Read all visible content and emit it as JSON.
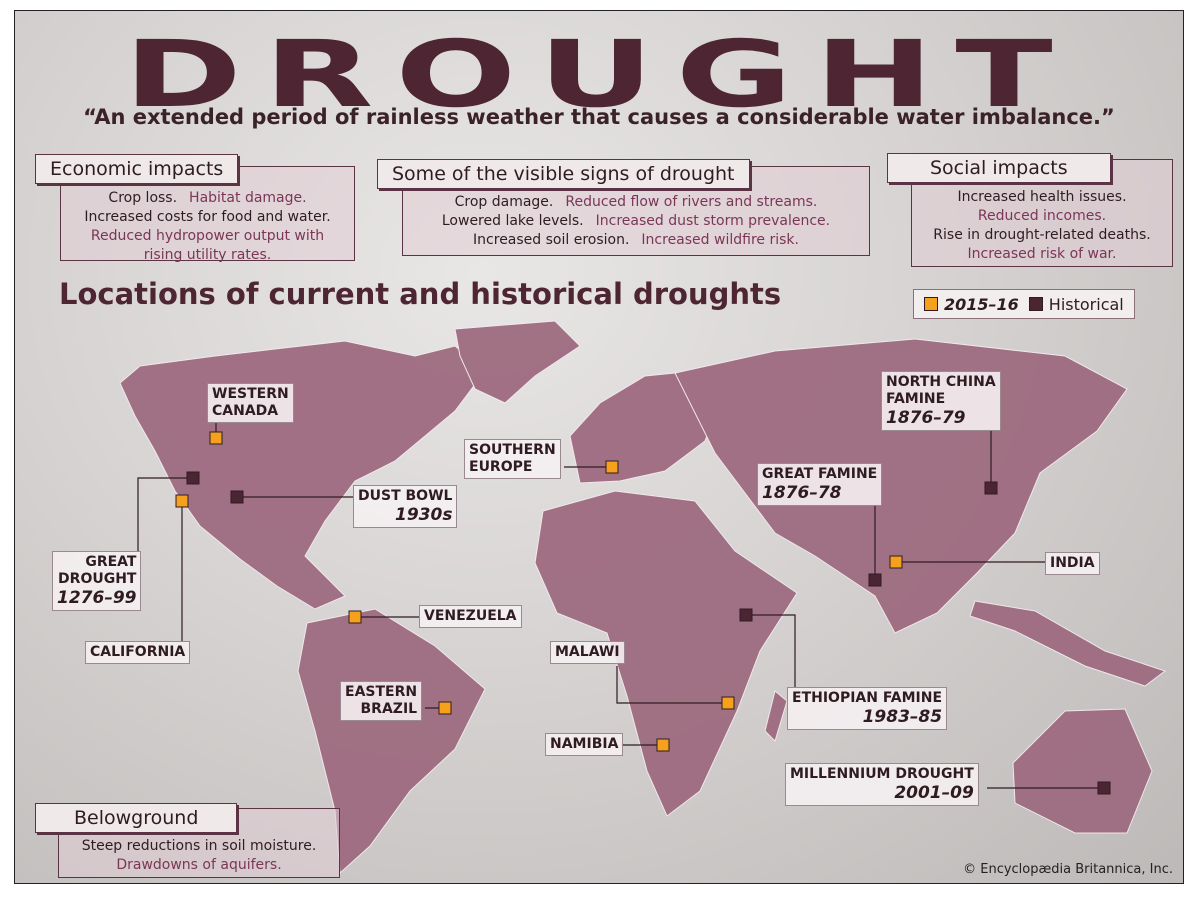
{
  "title": "DROUGHT",
  "subtitle": "“An extended period of rainless weather that causes a considerable water imbalance.”",
  "panels": {
    "economic": {
      "title": "Economic impacts",
      "items": [
        "Crop loss.",
        "Habitat damage.",
        "Increased costs for food and water.",
        "Reduced hydropower output with rising utility rates."
      ]
    },
    "signs": {
      "title": "Some of the visible signs of drought",
      "items": [
        "Crop damage.",
        "Reduced flow of rivers and streams.",
        "Lowered lake levels.",
        "Increased dust storm prevalence.",
        "Increased soil erosion.",
        "Increased wildfire risk."
      ]
    },
    "social": {
      "title": "Social impacts",
      "items": [
        "Increased health issues.",
        "Reduced incomes.",
        "Rise in drought-related deaths.",
        "Increased risk of war."
      ]
    },
    "belowground": {
      "title": "Belowground",
      "items": [
        "Steep reductions in soil moisture.",
        "Drawdowns of aquifers."
      ]
    }
  },
  "map": {
    "title": "Locations of current and historical droughts",
    "legend": [
      {
        "label": "2015–16",
        "color": "#f5a11c"
      },
      {
        "label": "Historical",
        "color": "#4b2532"
      }
    ],
    "locations": [
      {
        "lines": [
          "WESTERN",
          "CANADA"
        ],
        "color": "#f5a11c"
      },
      {
        "lines": [
          "GREAT",
          "DROUGHT"
        ],
        "date": "1276–99",
        "color": "#4b2532"
      },
      {
        "lines": [
          "CALIFORNIA"
        ],
        "color": "#f5a11c"
      },
      {
        "lines": [
          "DUST BOWL"
        ],
        "date": "1930s",
        "color": "#4b2532"
      },
      {
        "lines": [
          "SOUTHERN",
          "EUROPE"
        ],
        "color": "#f5a11c"
      },
      {
        "lines": [
          "GREAT FAMINE"
        ],
        "date": "1876–78",
        "color": "#4b2532"
      },
      {
        "lines": [
          "NORTH CHINA",
          "FAMINE"
        ],
        "date": "1876–79",
        "color": "#4b2532"
      },
      {
        "lines": [
          "INDIA"
        ],
        "color": "#f5a11c"
      },
      {
        "lines": [
          "VENEZUELA"
        ],
        "color": "#f5a11c"
      },
      {
        "lines": [
          "EASTERN",
          "BRAZIL"
        ],
        "color": "#f5a11c"
      },
      {
        "lines": [
          "MALAWI"
        ],
        "color": "#f5a11c"
      },
      {
        "lines": [
          "ETHIOPIAN FAMINE"
        ],
        "date": "1983–85",
        "color": "#4b2532"
      },
      {
        "lines": [
          "NAMIBIA"
        ],
        "color": "#f5a11c"
      },
      {
        "lines": [
          "MILLENNIUM DROUGHT"
        ],
        "date": "2001–09",
        "color": "#4b2532"
      }
    ]
  },
  "credit": "© Encyclopædia Britannica, Inc."
}
